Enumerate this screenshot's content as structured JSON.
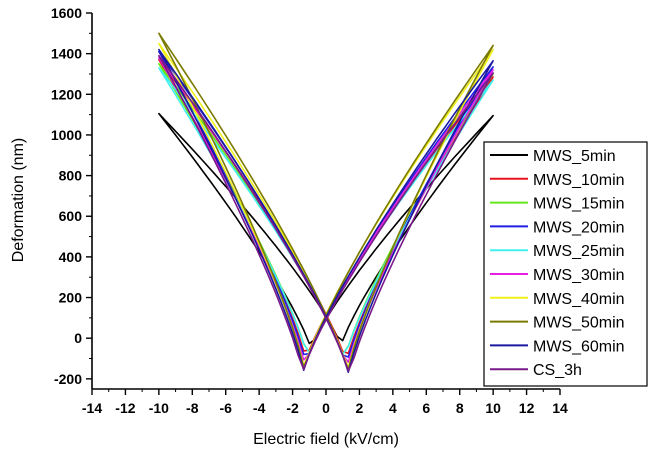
{
  "chart_data": {
    "type": "line",
    "title": "",
    "xlabel": "Electric field (kV/cm)",
    "ylabel": "Deformation (nm)",
    "xlim": [
      -14,
      14
    ],
    "ylim": [
      -250,
      1600
    ],
    "xticks": [
      -14,
      -12,
      -10,
      -8,
      -6,
      -4,
      -2,
      0,
      2,
      4,
      6,
      8,
      10,
      12,
      14
    ],
    "yticks": [
      -200,
      0,
      200,
      400,
      600,
      800,
      1000,
      1200,
      1400,
      1600
    ],
    "legend": "right",
    "grid": false,
    "series": [
      {
        "name": "MWS_5min",
        "color": "#000000",
        "peak_left": 1105,
        "peak_right": 1095,
        "min_left": -55,
        "min_right": -40,
        "min_x": 0.9
      },
      {
        "name": "MWS_10min",
        "color": "#e8141c",
        "peak_left": 1370,
        "peak_right": 1285,
        "min_left": -110,
        "min_right": -120,
        "min_x": 1.2
      },
      {
        "name": "MWS_15min",
        "color": "#66e619",
        "peak_left": 1350,
        "peak_right": 1300,
        "min_left": -100,
        "min_right": -110,
        "min_x": 1.1
      },
      {
        "name": "MWS_20min",
        "color": "#1f1fe6",
        "peak_left": 1410,
        "peak_right": 1335,
        "min_left": -130,
        "min_right": -140,
        "min_x": 1.2
      },
      {
        "name": "MWS_25min",
        "color": "#40f0f0",
        "peak_left": 1330,
        "peak_right": 1270,
        "min_left": -100,
        "min_right": -110,
        "min_x": 1.1
      },
      {
        "name": "MWS_30min",
        "color": "#e61ee6",
        "peak_left": 1380,
        "peak_right": 1320,
        "min_left": -140,
        "min_right": -150,
        "min_x": 1.25
      },
      {
        "name": "MWS_40min",
        "color": "#f0f01a",
        "peak_left": 1450,
        "peak_right": 1420,
        "min_left": -150,
        "min_right": -160,
        "min_x": 1.3
      },
      {
        "name": "MWS_50min",
        "color": "#7a7a00",
        "peak_left": 1500,
        "peak_right": 1440,
        "min_left": -160,
        "min_right": -170,
        "min_x": 1.3
      },
      {
        "name": "MWS_60min",
        "color": "#1a1aa0",
        "peak_left": 1420,
        "peak_right": 1365,
        "min_left": -165,
        "min_right": -175,
        "min_x": 1.35
      },
      {
        "name": "CS_3h",
        "color": "#7a1a8a",
        "peak_left": 1390,
        "peak_right": 1305,
        "min_left": -175,
        "min_right": -185,
        "min_x": 1.4
      }
    ]
  }
}
